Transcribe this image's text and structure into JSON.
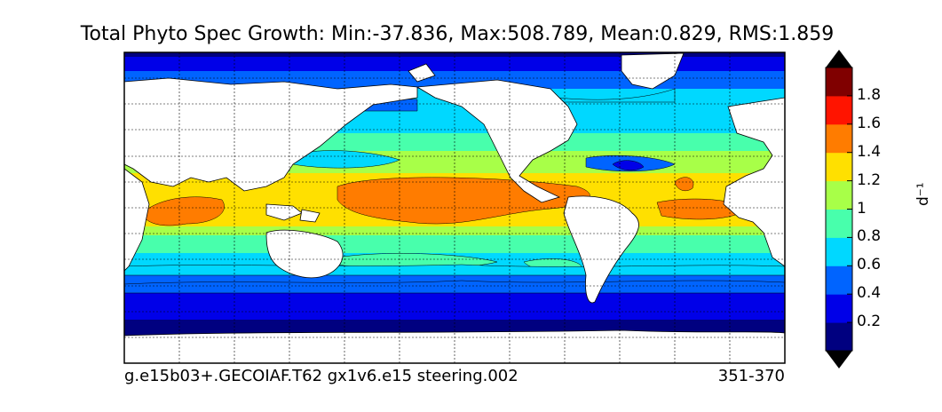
{
  "chart_data": {
    "type": "heatmap",
    "title": "Total Phyto Spec Growth: Min:-37.836, Max:508.789, Mean:0.829, RMS:1.859",
    "footer_left": "g.e15b03+.GECOIAF.T62 gx1v6.e15 steering.002",
    "footer_right": "351-370",
    "colorbar": {
      "label": "d⁻¹",
      "levels": [
        0,
        0.2,
        0.4,
        0.6,
        0.8,
        1,
        1.2,
        1.4,
        1.6,
        1.8,
        2.0
      ],
      "tick_labels": [
        "0.2",
        "0.4",
        "0.6",
        "0.8",
        "1",
        "1.2",
        "1.4",
        "1.6",
        "1.8"
      ],
      "colors": [
        "#000080",
        "#0000e8",
        "#0064ff",
        "#00d8ff",
        "#48ffac",
        "#a8ff48",
        "#ffe000",
        "#ff7c00",
        "#ff1400",
        "#800000"
      ],
      "extend": "both"
    },
    "map": {
      "projection": "cylindrical",
      "grid": true,
      "land_color": "#ffffff"
    }
  }
}
